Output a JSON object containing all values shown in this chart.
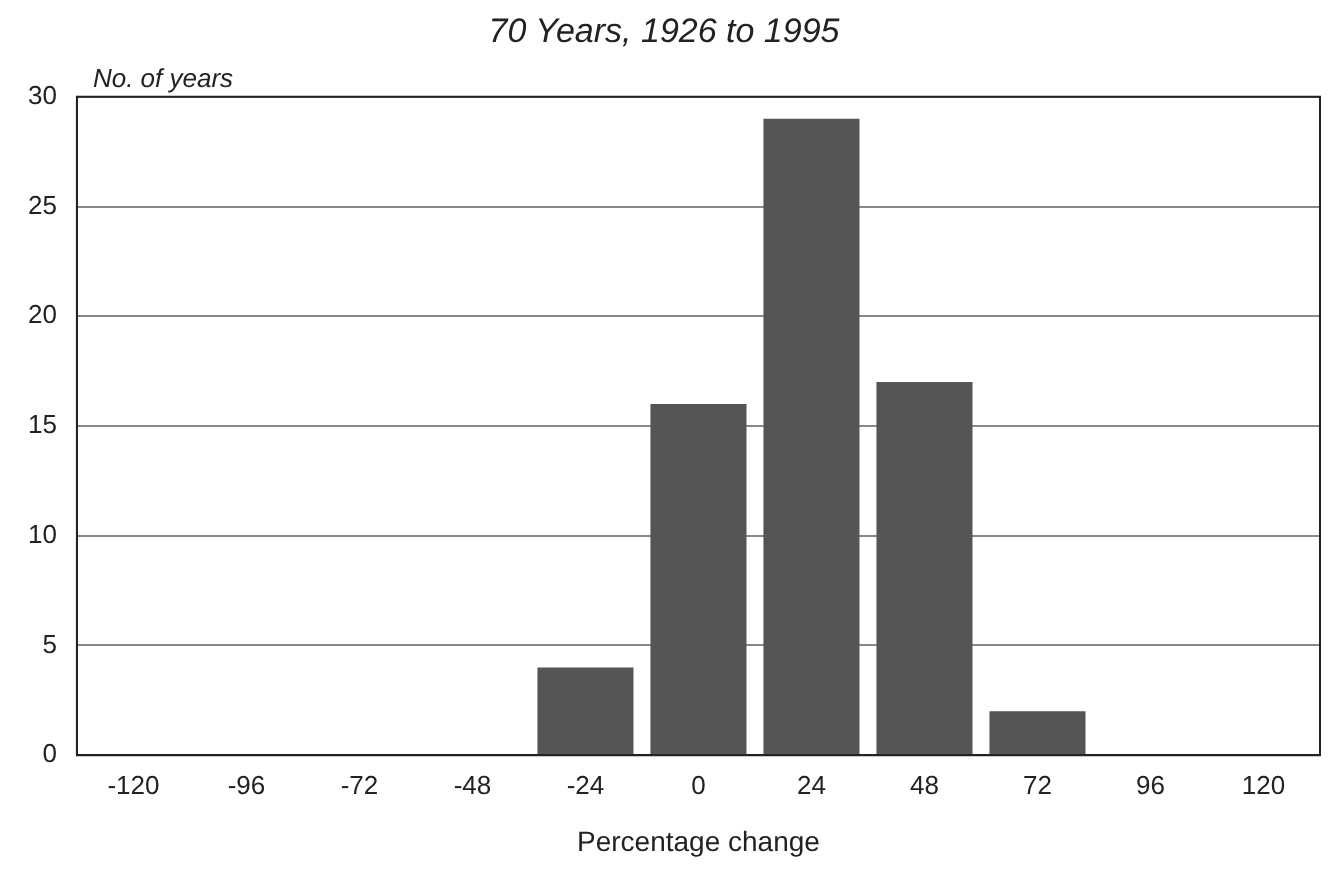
{
  "chart_data": {
    "type": "bar",
    "title": "70 Years, 1926 to 1995",
    "xlabel": "Percentage change",
    "ylabel": "No. of years",
    "categories": [
      "-120",
      "-96",
      "-72",
      "-48",
      "-24",
      "0",
      "24",
      "48",
      "72",
      "96",
      "120"
    ],
    "values": [
      0,
      0,
      0,
      0,
      4,
      16,
      29,
      17,
      2,
      0,
      0
    ],
    "color": "#555555",
    "ylim": [
      0,
      30
    ],
    "yticks": [
      0,
      5,
      10,
      15,
      20,
      25,
      30
    ],
    "grid": "y"
  }
}
